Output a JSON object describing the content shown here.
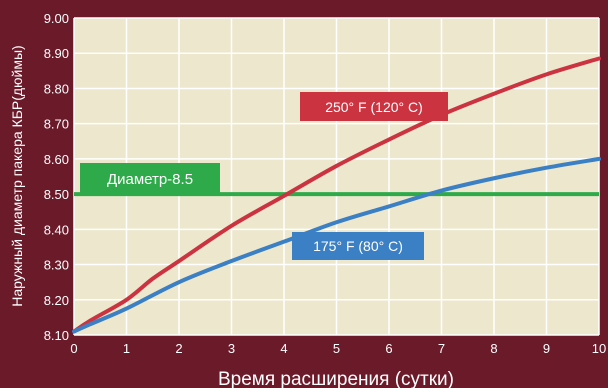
{
  "colors": {
    "background": "#6b1a2a",
    "plot_area": "#ece7cd",
    "grid": "#ffffff",
    "series_hot": "#cc3340",
    "series_cool": "#3b7fc4",
    "threshold": "#2eaa4a",
    "label_text": "#ffffff"
  },
  "chart_data": {
    "type": "line",
    "title": "",
    "xlabel": "Время расширения (сутки)",
    "ylabel": "Наружный диаметр пакера КБР(дюймы)",
    "xlim": [
      0,
      10
    ],
    "ylim": [
      8.1,
      9.0
    ],
    "x_ticks": [
      "0",
      "1",
      "2",
      "3",
      "4",
      "5",
      "6",
      "7",
      "8",
      "9",
      "10"
    ],
    "y_ticks": [
      "8.10",
      "8.20",
      "8.30",
      "8.40",
      "8.50",
      "8.60",
      "8.70",
      "8.80",
      "8.90",
      "9.00"
    ],
    "grid": true,
    "series": [
      {
        "name": "250° F (120° C)",
        "color": "#cc3340",
        "x": [
          0,
          0.3,
          1,
          1.5,
          2,
          3,
          4,
          5,
          6,
          7,
          8,
          9,
          10
        ],
        "y": [
          8.11,
          8.14,
          8.2,
          8.26,
          8.31,
          8.41,
          8.495,
          8.58,
          8.655,
          8.725,
          8.785,
          8.84,
          8.885
        ]
      },
      {
        "name": "175° F (80° C)",
        "color": "#3b7fc4",
        "x": [
          0,
          0.3,
          1,
          2,
          3,
          4,
          5,
          6,
          7,
          8,
          9,
          10
        ],
        "y": [
          8.11,
          8.13,
          8.175,
          8.25,
          8.31,
          8.365,
          8.42,
          8.465,
          8.51,
          8.545,
          8.575,
          8.6
        ]
      }
    ],
    "threshold": {
      "label": "Диаметр-8.5",
      "value": 8.5,
      "color": "#2eaa4a"
    }
  }
}
